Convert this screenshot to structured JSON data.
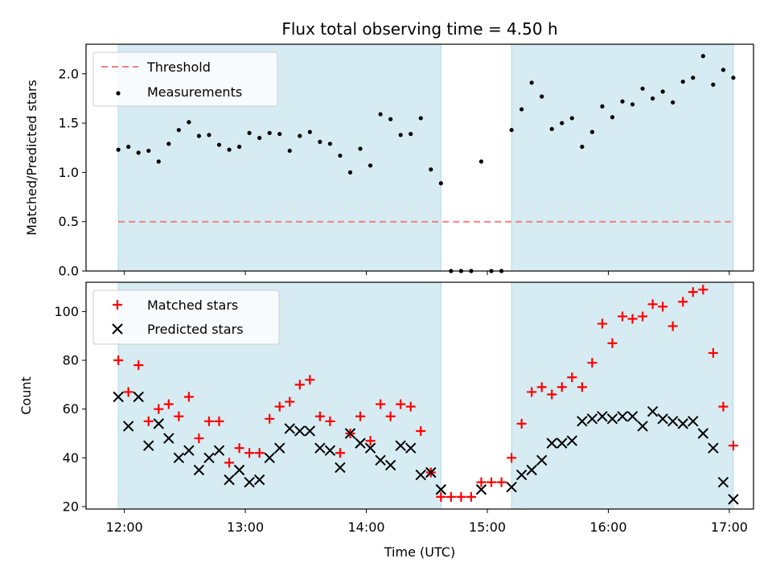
{
  "chart_data": {
    "type": "scatter",
    "title": "Flux total observing time = 4.50 h",
    "xlabel": "Time (UTC)",
    "x_ticks": [
      "12:00",
      "13:00",
      "14:00",
      "15:00",
      "16:00",
      "17:00"
    ],
    "xlim": [
      "11:41",
      "17:12"
    ],
    "shaded_intervals": [
      [
        "11:57",
        "14:37"
      ],
      [
        "15:12",
        "17:02"
      ]
    ],
    "top_panel": {
      "ylabel": "Matched/Predicted stars",
      "ylim": [
        0,
        2.3
      ],
      "y_ticks": [
        "0.0",
        "0.5",
        "1.0",
        "1.5",
        "2.0"
      ],
      "legend_placement": "upper-left",
      "threshold": {
        "name": "Threshold",
        "value": 0.5,
        "x_range": [
          "11:57",
          "17:02"
        ],
        "color": "#f08080"
      },
      "measurements": {
        "name": "Measurements",
        "color": "#000000",
        "x": [
          "11:57",
          "12:02",
          "12:07",
          "12:12",
          "12:17",
          "12:22",
          "12:27",
          "12:32",
          "12:37",
          "12:42",
          "12:47",
          "12:52",
          "12:57",
          "13:02",
          "13:07",
          "13:12",
          "13:17",
          "13:22",
          "13:27",
          "13:32",
          "13:37",
          "13:42",
          "13:47",
          "13:52",
          "13:57",
          "14:02",
          "14:07",
          "14:12",
          "14:17",
          "14:22",
          "14:27",
          "14:32",
          "14:37",
          "14:42",
          "14:47",
          "14:52",
          "14:57",
          "15:02",
          "15:07",
          "15:12",
          "15:17",
          "15:22",
          "15:27",
          "15:32",
          "15:37",
          "15:42",
          "15:47",
          "15:52",
          "15:57",
          "16:02",
          "16:07",
          "16:12",
          "16:17",
          "16:22",
          "16:27",
          "16:32",
          "16:37",
          "16:42",
          "16:47",
          "16:52",
          "16:57",
          "17:02"
        ],
        "y": [
          1.23,
          1.26,
          1.2,
          1.22,
          1.11,
          1.29,
          1.43,
          1.51,
          1.37,
          1.38,
          1.28,
          1.23,
          1.26,
          1.4,
          1.35,
          1.4,
          1.39,
          1.22,
          1.37,
          1.41,
          1.31,
          1.29,
          1.17,
          1.0,
          1.24,
          1.07,
          1.59,
          1.54,
          1.38,
          1.39,
          1.55,
          1.03,
          0.89,
          0.0,
          0.0,
          0.0,
          1.11,
          0.0,
          0.0,
          1.43,
          1.64,
          1.91,
          1.77,
          1.44,
          1.5,
          1.55,
          1.26,
          1.41,
          1.67,
          1.56,
          1.72,
          1.69,
          1.85,
          1.75,
          1.82,
          1.71,
          1.92,
          1.96,
          2.18,
          1.89,
          2.04,
          1.96
        ]
      }
    },
    "bottom_panel": {
      "ylabel": "Count",
      "ylim": [
        19,
        112
      ],
      "y_ticks": [
        "20",
        "40",
        "60",
        "80",
        "100"
      ],
      "legend_placement": "upper-left",
      "series": [
        {
          "name": "Matched stars",
          "marker": "plus",
          "color": "#ff0000",
          "x": [
            "11:57",
            "12:02",
            "12:07",
            "12:12",
            "12:17",
            "12:22",
            "12:27",
            "12:32",
            "12:37",
            "12:42",
            "12:47",
            "12:52",
            "12:57",
            "13:02",
            "13:07",
            "13:12",
            "13:17",
            "13:22",
            "13:27",
            "13:32",
            "13:37",
            "13:42",
            "13:47",
            "13:52",
            "13:57",
            "14:02",
            "14:07",
            "14:12",
            "14:17",
            "14:22",
            "14:27",
            "14:32",
            "14:37",
            "14:42",
            "14:47",
            "14:52",
            "14:57",
            "15:02",
            "15:07",
            "15:12",
            "15:17",
            "15:22",
            "15:27",
            "15:32",
            "15:37",
            "15:42",
            "15:47",
            "15:52",
            "15:57",
            "16:02",
            "16:07",
            "16:12",
            "16:17",
            "16:22",
            "16:27",
            "16:32",
            "16:37",
            "16:42",
            "16:47",
            "16:52",
            "16:57",
            "17:02"
          ],
          "y": [
            80,
            67,
            78,
            55,
            60,
            62,
            57,
            65,
            48,
            55,
            55,
            38,
            44,
            42,
            42,
            56,
            61,
            63,
            70,
            72,
            57,
            55,
            42,
            50,
            57,
            47,
            62,
            57,
            62,
            61,
            51,
            34,
            24,
            24,
            24,
            24,
            30,
            30,
            30,
            40,
            54,
            67,
            69,
            66,
            69,
            73,
            69,
            79,
            95,
            87,
            98,
            97,
            98,
            103,
            102,
            94,
            104,
            108,
            109,
            83,
            61,
            45
          ]
        },
        {
          "name": "Predicted stars",
          "marker": "x",
          "color": "#000000",
          "x": [
            "11:57",
            "12:02",
            "12:07",
            "12:12",
            "12:17",
            "12:22",
            "12:27",
            "12:32",
            "12:37",
            "12:42",
            "12:47",
            "12:52",
            "12:57",
            "13:02",
            "13:07",
            "13:12",
            "13:17",
            "13:22",
            "13:27",
            "13:32",
            "13:37",
            "13:42",
            "13:47",
            "13:52",
            "13:57",
            "14:02",
            "14:07",
            "14:12",
            "14:17",
            "14:22",
            "14:27",
            "14:32",
            "14:37",
            "14:57",
            "15:12",
            "15:17",
            "15:22",
            "15:27",
            "15:32",
            "15:37",
            "15:42",
            "15:47",
            "15:52",
            "15:57",
            "16:02",
            "16:07",
            "16:12",
            "16:17",
            "16:22",
            "16:27",
            "16:32",
            "16:37",
            "16:42",
            "16:47",
            "16:52",
            "16:57",
            "17:02"
          ],
          "y": [
            65,
            53,
            65,
            45,
            54,
            48,
            40,
            43,
            35,
            40,
            43,
            31,
            35,
            30,
            31,
            40,
            44,
            52,
            51,
            51,
            44,
            43,
            36,
            50,
            46,
            44,
            39,
            37,
            45,
            44,
            33,
            34,
            27,
            27,
            28,
            33,
            35,
            39,
            46,
            46,
            47,
            55,
            56,
            57,
            56,
            57,
            57,
            53,
            59,
            56,
            55,
            54,
            55,
            50,
            44,
            30,
            23
          ]
        }
      ]
    }
  }
}
